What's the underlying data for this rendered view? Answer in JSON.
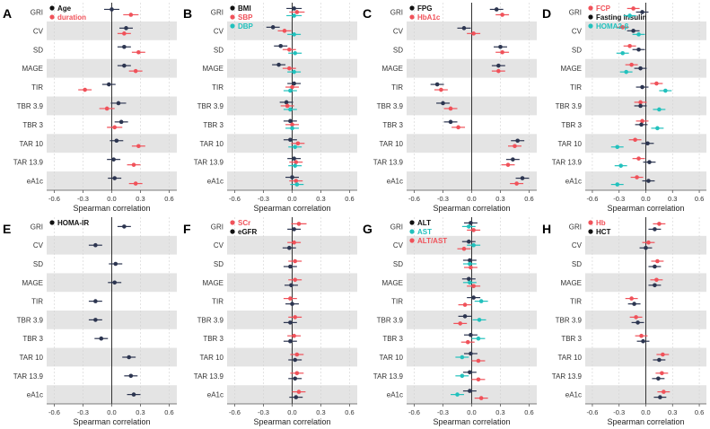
{
  "xlabel": "Spearman correlation",
  "ticks": [
    -0.6,
    -0.3,
    0.0,
    0.3,
    0.6
  ],
  "tick_labels": [
    "-0.6",
    "-0.3",
    "0.0",
    "0.3",
    "0.6"
  ],
  "xlim": [
    -0.68,
    0.68
  ],
  "colors": {
    "black": "#111111",
    "navy": "#2c3550",
    "red": "#f0525a",
    "teal": "#22c1bd",
    "band": "#e4e4e4"
  },
  "chart_data": [
    {
      "type": "scatter",
      "letter": "A",
      "categories": [
        "GRI",
        "CV",
        "SD",
        "MAGE",
        "TIR",
        "TBR 3.9",
        "TBR 3",
        "TAR 10",
        "TAR 13.9",
        "eA1c"
      ],
      "series": [
        {
          "name": "Age",
          "legend_color": "black",
          "color": "navy",
          "values": [
            0.0,
            0.15,
            0.13,
            0.13,
            -0.03,
            0.07,
            0.1,
            0.05,
            0.02,
            0.03
          ],
          "ci_low": [
            -0.08,
            0.08,
            0.06,
            0.06,
            -0.1,
            -0.01,
            0.03,
            -0.02,
            -0.05,
            -0.04
          ],
          "ci_high": [
            0.08,
            0.22,
            0.2,
            0.2,
            0.04,
            0.15,
            0.17,
            0.12,
            0.09,
            0.1
          ]
        },
        {
          "name": "duration",
          "legend_color": "red",
          "color": "red",
          "values": [
            0.2,
            0.13,
            0.28,
            0.25,
            -0.28,
            -0.05,
            0.03,
            0.28,
            0.23,
            0.25
          ],
          "ci_low": [
            0.12,
            0.06,
            0.21,
            0.18,
            -0.35,
            -0.13,
            -0.05,
            0.21,
            0.16,
            0.18
          ],
          "ci_high": [
            0.28,
            0.2,
            0.35,
            0.32,
            -0.21,
            0.03,
            0.11,
            0.35,
            0.3,
            0.32
          ]
        }
      ]
    },
    {
      "type": "scatter",
      "letter": "B",
      "categories": [
        "GRI",
        "CV",
        "SD",
        "MAGE",
        "TIR",
        "TBR 3.9",
        "TBR 3",
        "TAR 10",
        "TAR 13.9",
        "eA1c"
      ],
      "series": [
        {
          "name": "BMI",
          "legend_color": "black",
          "color": "navy",
          "values": [
            0.02,
            -0.2,
            -0.12,
            -0.14,
            0.02,
            -0.06,
            -0.02,
            -0.02,
            0.02,
            0.0
          ],
          "ci_low": [
            -0.06,
            -0.27,
            -0.19,
            -0.21,
            -0.05,
            -0.13,
            -0.09,
            -0.09,
            -0.05,
            -0.07
          ],
          "ci_high": [
            0.1,
            -0.13,
            -0.05,
            -0.07,
            0.09,
            0.01,
            0.05,
            0.05,
            0.09,
            0.07
          ]
        },
        {
          "name": "SBP",
          "legend_color": "red",
          "color": "red",
          "values": [
            0.05,
            -0.08,
            -0.03,
            -0.03,
            0.0,
            -0.05,
            0.0,
            0.06,
            0.04,
            0.04
          ],
          "ci_low": [
            -0.03,
            -0.15,
            -0.1,
            -0.1,
            -0.07,
            -0.12,
            -0.07,
            -0.01,
            -0.03,
            -0.03
          ],
          "ci_high": [
            0.13,
            -0.01,
            0.04,
            0.04,
            0.07,
            0.02,
            0.07,
            0.13,
            0.11,
            0.11
          ]
        },
        {
          "name": "DBP",
          "legend_color": "teal",
          "color": "teal",
          "values": [
            0.02,
            0.02,
            0.03,
            0.02,
            -0.02,
            -0.02,
            0.0,
            0.03,
            0.03,
            0.05
          ],
          "ci_low": [
            -0.06,
            -0.05,
            -0.04,
            -0.05,
            -0.09,
            -0.09,
            -0.07,
            -0.04,
            -0.04,
            -0.02
          ],
          "ci_high": [
            0.1,
            0.09,
            0.1,
            0.09,
            0.05,
            0.05,
            0.07,
            0.1,
            0.1,
            0.12
          ]
        }
      ]
    },
    {
      "type": "scatter",
      "letter": "C",
      "categories": [
        "GRI",
        "CV",
        "SD",
        "MAGE",
        "TIR",
        "TBR 3.9",
        "TBR 3",
        "TAR 10",
        "TAR 13.9",
        "eA1c"
      ],
      "series": [
        {
          "name": "FPG",
          "legend_color": "black",
          "color": "navy",
          "values": [
            0.26,
            -0.08,
            0.3,
            0.28,
            -0.36,
            -0.3,
            -0.22,
            0.48,
            0.43,
            0.53
          ],
          "ci_low": [
            0.19,
            -0.15,
            0.23,
            0.21,
            -0.43,
            -0.37,
            -0.29,
            0.41,
            0.36,
            0.46
          ],
          "ci_high": [
            0.33,
            -0.01,
            0.37,
            0.35,
            -0.29,
            -0.23,
            -0.15,
            0.55,
            0.5,
            0.6
          ]
        },
        {
          "name": "HbA1c",
          "legend_color": "red",
          "color": "red",
          "values": [
            0.32,
            0.02,
            0.32,
            0.28,
            -0.32,
            -0.22,
            -0.14,
            0.45,
            0.38,
            0.47
          ],
          "ci_low": [
            0.25,
            -0.05,
            0.25,
            0.21,
            -0.39,
            -0.29,
            -0.21,
            0.38,
            0.31,
            0.4
          ],
          "ci_high": [
            0.39,
            0.09,
            0.39,
            0.35,
            -0.25,
            -0.15,
            -0.07,
            0.52,
            0.45,
            0.54
          ]
        }
      ]
    },
    {
      "type": "scatter",
      "letter": "D",
      "categories": [
        "GRI",
        "CV",
        "SD",
        "MAGE",
        "TIR",
        "TBR 3.9",
        "TBR 3",
        "TAR 10",
        "TAR 13.9",
        "eA1c"
      ],
      "series": [
        {
          "name": "FCP",
          "legend_color": "red",
          "color": "red",
          "values": [
            -0.14,
            -0.26,
            -0.18,
            -0.16,
            0.12,
            -0.06,
            -0.04,
            -0.12,
            -0.08,
            -0.1
          ],
          "ci_low": [
            -0.21,
            -0.33,
            -0.25,
            -0.23,
            0.05,
            -0.13,
            -0.11,
            -0.19,
            -0.15,
            -0.17
          ],
          "ci_high": [
            -0.07,
            -0.19,
            -0.11,
            -0.09,
            0.19,
            0.01,
            0.03,
            -0.05,
            -0.01,
            -0.03
          ]
        },
        {
          "name": "Fasting insulin",
          "legend_color": "black",
          "color": "navy",
          "values": [
            -0.04,
            -0.14,
            -0.08,
            -0.06,
            -0.04,
            -0.06,
            -0.05,
            0.02,
            0.04,
            0.03
          ],
          "ci_low": [
            -0.11,
            -0.21,
            -0.15,
            -0.13,
            -0.11,
            -0.13,
            -0.12,
            -0.05,
            -0.03,
            -0.04
          ],
          "ci_high": [
            0.03,
            -0.07,
            -0.01,
            0.01,
            0.03,
            0.01,
            0.02,
            0.09,
            0.11,
            0.1
          ]
        },
        {
          "name": "HOMA2-β",
          "legend_color": "teal",
          "color": "teal",
          "values": [
            -0.18,
            -0.08,
            -0.26,
            -0.22,
            0.22,
            0.15,
            0.13,
            -0.32,
            -0.28,
            -0.32
          ],
          "ci_low": [
            -0.25,
            -0.15,
            -0.33,
            -0.29,
            0.15,
            0.08,
            0.06,
            -0.39,
            -0.35,
            -0.39
          ],
          "ci_high": [
            -0.11,
            -0.01,
            -0.19,
            -0.15,
            0.29,
            0.22,
            0.2,
            -0.25,
            -0.21,
            -0.25
          ]
        }
      ]
    },
    {
      "type": "scatter",
      "letter": "E",
      "categories": [
        "GRI",
        "CV",
        "SD",
        "MAGE",
        "TIR",
        "TBR 3.9",
        "TBR 3",
        "TAR 10",
        "TAR 13.9",
        "eA1c"
      ],
      "series": [
        {
          "name": "HOMA-IR",
          "legend_color": "black",
          "color": "navy",
          "values": [
            0.13,
            -0.17,
            0.04,
            0.03,
            -0.17,
            -0.17,
            -0.11,
            0.18,
            0.2,
            0.23
          ],
          "ci_low": [
            0.06,
            -0.24,
            -0.03,
            -0.04,
            -0.24,
            -0.24,
            -0.18,
            0.11,
            0.13,
            0.16
          ],
          "ci_high": [
            0.2,
            -0.1,
            0.11,
            0.1,
            -0.1,
            -0.1,
            -0.04,
            0.25,
            0.27,
            0.3
          ]
        }
      ]
    },
    {
      "type": "scatter",
      "letter": "F",
      "categories": [
        "GRI",
        "CV",
        "SD",
        "MAGE",
        "TIR",
        "TBR 3.9",
        "TBR 3",
        "TAR 10",
        "TAR 13.9",
        "eA1c"
      ],
      "series": [
        {
          "name": "SCr",
          "legend_color": "red",
          "color": "red",
          "values": [
            0.07,
            0.02,
            0.03,
            0.03,
            -0.02,
            0.03,
            0.02,
            0.05,
            0.05,
            0.07
          ],
          "ci_low": [
            -0.01,
            -0.05,
            -0.04,
            -0.04,
            -0.09,
            -0.04,
            -0.05,
            -0.02,
            -0.02,
            0.0
          ],
          "ci_high": [
            0.15,
            0.09,
            0.1,
            0.1,
            0.05,
            0.1,
            0.09,
            0.12,
            0.12,
            0.14
          ]
        },
        {
          "name": "eGFR",
          "legend_color": "black",
          "color": "navy",
          "values": [
            0.02,
            -0.03,
            -0.02,
            -0.01,
            0.0,
            -0.02,
            -0.02,
            0.03,
            0.03,
            0.04
          ],
          "ci_low": [
            -0.05,
            -0.1,
            -0.09,
            -0.08,
            -0.07,
            -0.09,
            -0.09,
            -0.04,
            -0.04,
            -0.03
          ],
          "ci_high": [
            0.09,
            0.04,
            0.05,
            0.06,
            0.07,
            0.05,
            0.05,
            0.1,
            0.1,
            0.11
          ]
        }
      ]
    },
    {
      "type": "scatter",
      "letter": "G",
      "categories": [
        "GRI",
        "CV",
        "SD",
        "MAGE",
        "TIR",
        "TBR 3.9",
        "TBR 3",
        "TAR 10",
        "TAR 13.9",
        "eA1c"
      ],
      "series": [
        {
          "name": "ALT",
          "legend_color": "black",
          "color": "navy",
          "values": [
            -0.01,
            -0.03,
            -0.02,
            -0.03,
            0.02,
            -0.07,
            -0.01,
            -0.01,
            -0.02,
            -0.02
          ],
          "ci_low": [
            -0.08,
            -0.1,
            -0.09,
            -0.1,
            -0.05,
            -0.14,
            -0.08,
            -0.08,
            -0.09,
            -0.09
          ],
          "ci_high": [
            0.06,
            0.04,
            0.05,
            0.04,
            0.09,
            0.0,
            0.06,
            0.06,
            0.05,
            0.05
          ]
        },
        {
          "name": "AST",
          "legend_color": "teal",
          "color": "teal",
          "values": [
            -0.03,
            0.02,
            -0.02,
            -0.02,
            0.1,
            0.08,
            0.07,
            -0.1,
            -0.1,
            -0.15
          ],
          "ci_low": [
            -0.1,
            -0.05,
            -0.09,
            -0.09,
            0.03,
            0.01,
            0.0,
            -0.17,
            -0.17,
            -0.22
          ],
          "ci_high": [
            0.04,
            0.09,
            0.05,
            0.05,
            0.17,
            0.15,
            0.14,
            -0.03,
            -0.03,
            -0.08
          ]
        },
        {
          "name": "ALT/AST",
          "legend_color": "red",
          "color": "red",
          "values": [
            0.02,
            -0.08,
            -0.01,
            0.02,
            -0.07,
            -0.12,
            -0.04,
            0.07,
            0.07,
            0.1
          ],
          "ci_low": [
            -0.05,
            -0.15,
            -0.08,
            -0.05,
            -0.14,
            -0.19,
            -0.11,
            0.0,
            0.0,
            0.03
          ],
          "ci_high": [
            0.09,
            -0.01,
            0.06,
            0.09,
            0.0,
            -0.05,
            0.03,
            0.14,
            0.14,
            0.17
          ]
        }
      ]
    },
    {
      "type": "scatter",
      "letter": "H",
      "categories": [
        "GRI",
        "CV",
        "SD",
        "MAGE",
        "TIR",
        "TBR 3.9",
        "TBR 3",
        "TAR 10",
        "TAR 13.9",
        "eA1c"
      ],
      "series": [
        {
          "name": "Hb",
          "legend_color": "red",
          "color": "red",
          "values": [
            0.15,
            0.03,
            0.13,
            0.12,
            -0.16,
            -0.11,
            -0.05,
            0.19,
            0.18,
            0.2
          ],
          "ci_low": [
            0.08,
            -0.04,
            0.06,
            0.05,
            -0.23,
            -0.18,
            -0.12,
            0.12,
            0.11,
            0.13
          ],
          "ci_high": [
            0.22,
            0.1,
            0.2,
            0.19,
            -0.09,
            -0.04,
            0.02,
            0.26,
            0.25,
            0.27
          ]
        },
        {
          "name": "HCT",
          "legend_color": "black",
          "color": "navy",
          "values": [
            0.1,
            0.0,
            0.1,
            0.1,
            -0.13,
            -0.09,
            -0.03,
            0.15,
            0.14,
            0.16
          ],
          "ci_low": [
            0.03,
            -0.07,
            0.03,
            0.03,
            -0.2,
            -0.16,
            -0.1,
            0.08,
            0.07,
            0.09
          ],
          "ci_high": [
            0.17,
            0.07,
            0.17,
            0.17,
            -0.06,
            -0.02,
            0.04,
            0.22,
            0.21,
            0.23
          ]
        }
      ]
    }
  ]
}
